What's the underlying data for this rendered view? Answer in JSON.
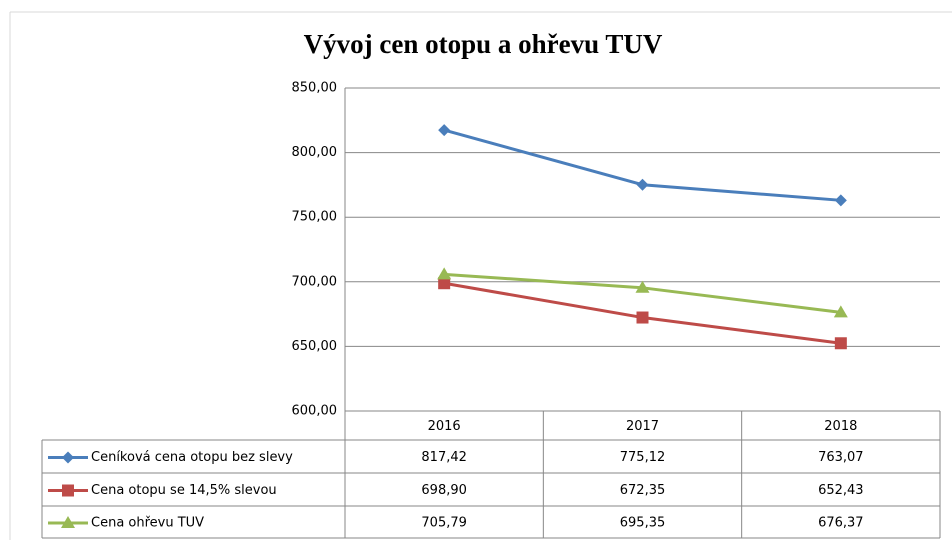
{
  "chart_data": {
    "type": "line",
    "title": "Vývoj cen otopu a ohřevu TUV",
    "categories": [
      "2016",
      "2017",
      "2018"
    ],
    "series": [
      {
        "name": "Ceníková cena otopu bez slevy",
        "color": "#4a7ebb",
        "marker": "diamond",
        "values": [
          817.42,
          775.12,
          763.07
        ],
        "value_labels": [
          "817,42",
          "775,12",
          "763,07"
        ]
      },
      {
        "name": "Cena otopu se 14,5% slevou",
        "color": "#be4b48",
        "marker": "square",
        "values": [
          698.9,
          672.35,
          652.43
        ],
        "value_labels": [
          "698,90",
          "672,35",
          "652,43"
        ]
      },
      {
        "name": "Cena ohřevu TUV",
        "color": "#98b954",
        "marker": "triangle",
        "values": [
          705.79,
          695.35,
          676.37
        ],
        "value_labels": [
          "705,79",
          "695,35",
          "676,37"
        ]
      }
    ],
    "ylim": [
      600,
      850
    ],
    "yticks": [
      {
        "value": 600,
        "label": "600,00"
      },
      {
        "value": 650,
        "label": "650,00"
      },
      {
        "value": 700,
        "label": "700,00"
      },
      {
        "value": 750,
        "label": "750,00"
      },
      {
        "value": 800,
        "label": "800,00"
      },
      {
        "value": 850,
        "label": "850,00"
      }
    ],
    "grid": true,
    "data_table": true
  }
}
